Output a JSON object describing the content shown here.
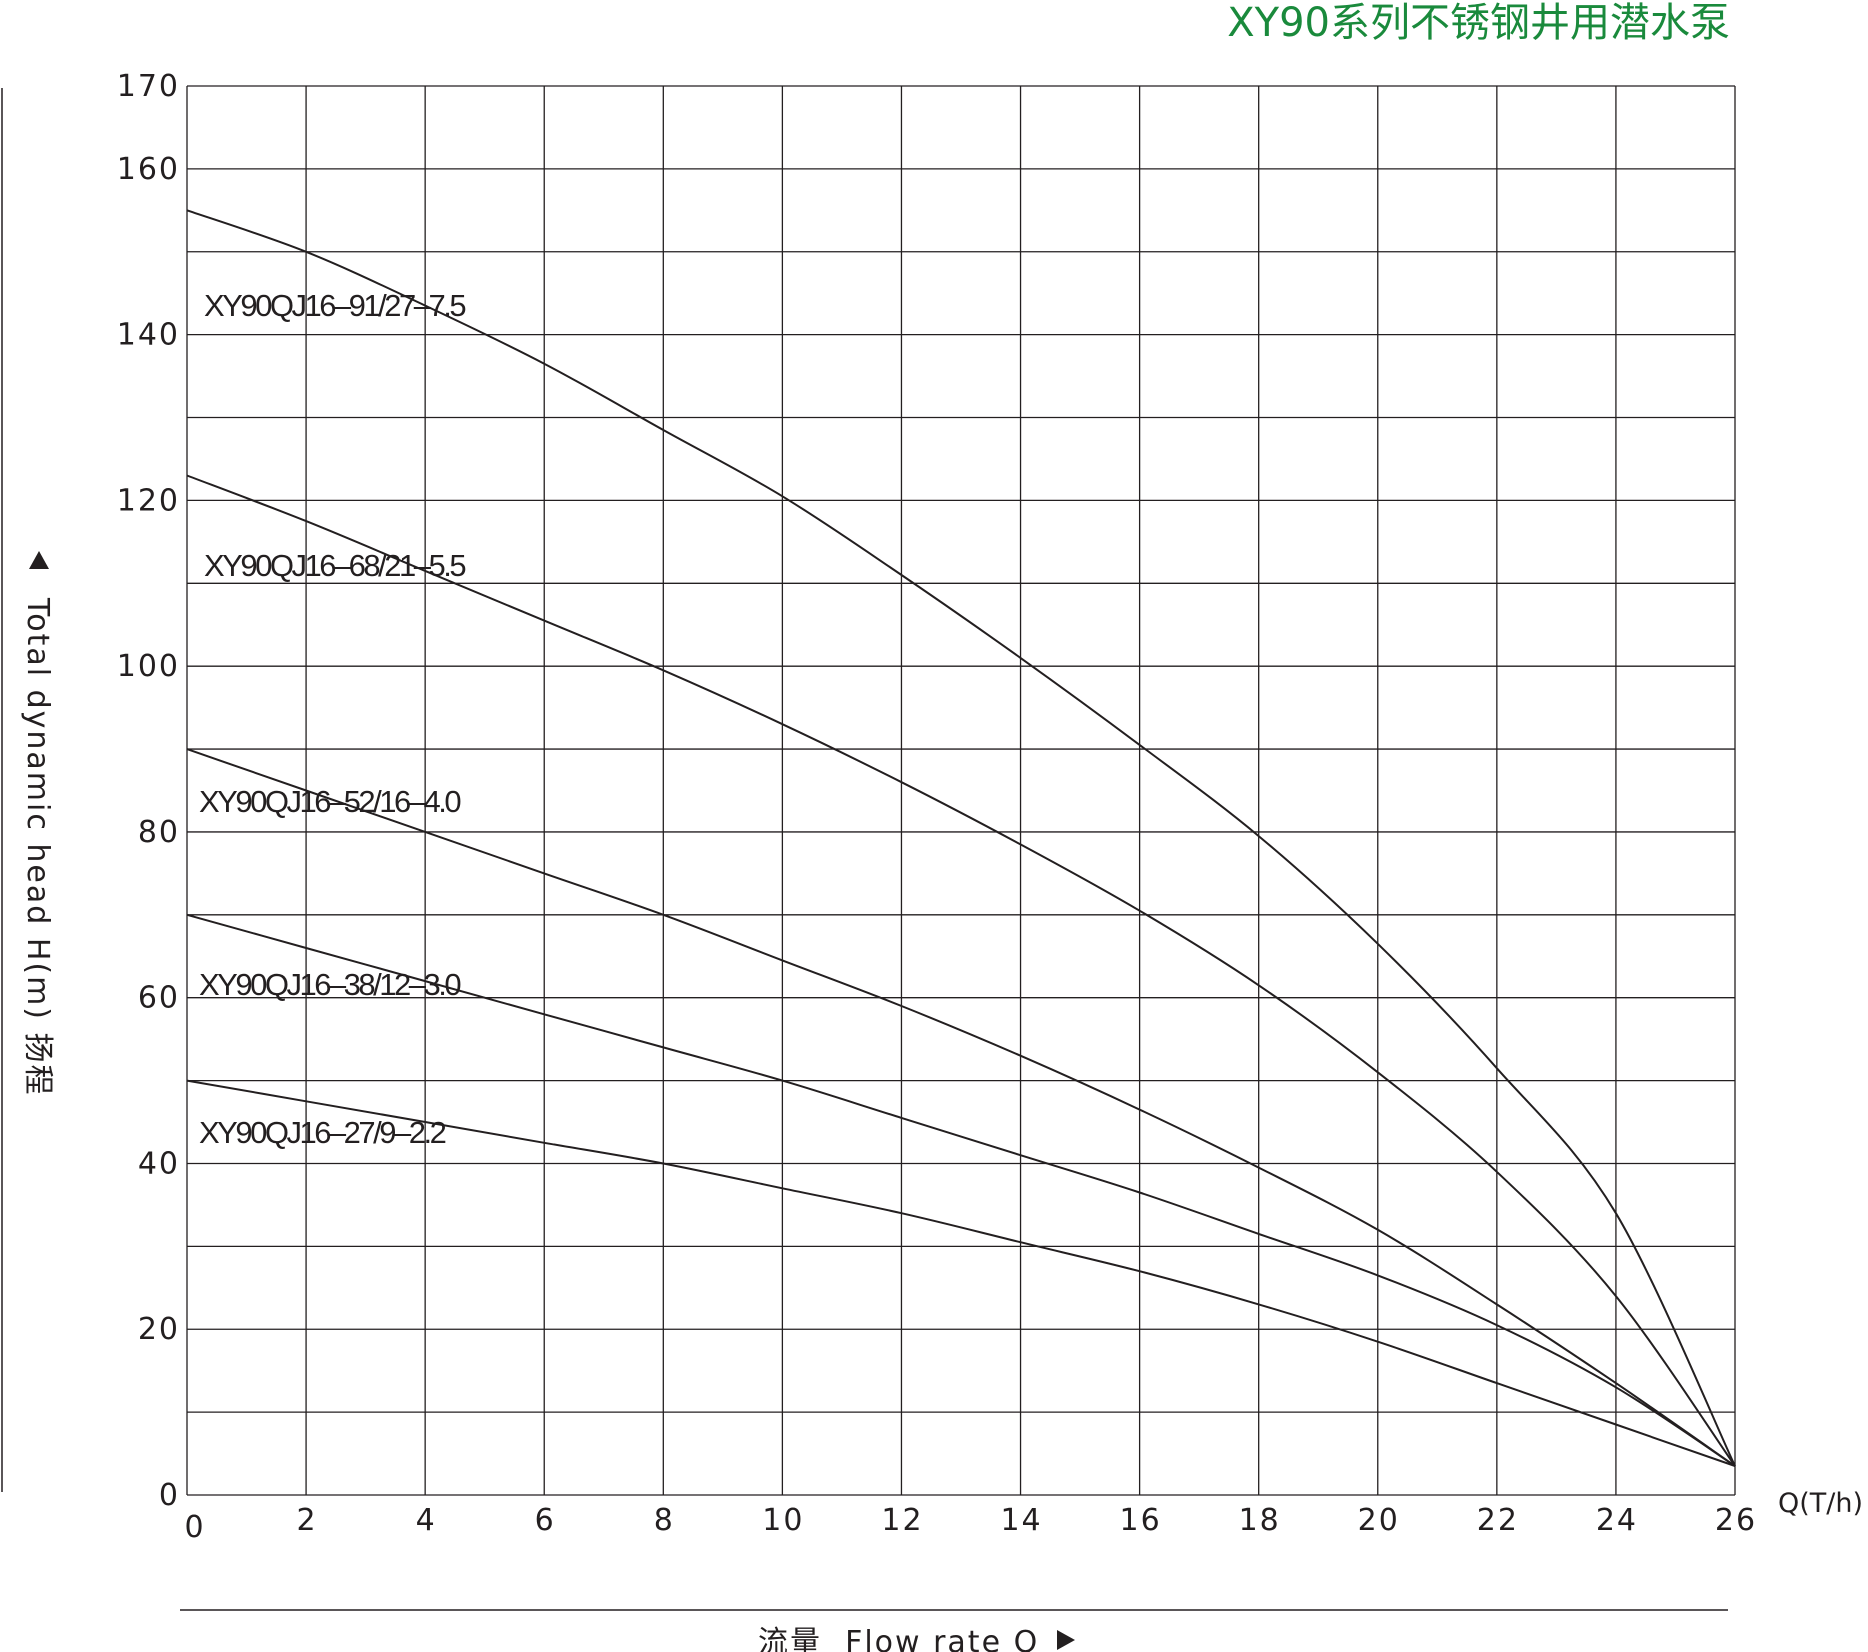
{
  "chart_data": {
    "type": "line",
    "title": "XY90系列不锈钢井用潜水泵",
    "xlabel": "流量  Flow rate Q",
    "x_unit": "Q(T/h)",
    "ylabel": "Total dynamic head H(m) 扬程",
    "xlim": [
      0,
      26
    ],
    "ylim": [
      0,
      170
    ],
    "x_ticks": [
      0,
      2,
      4,
      6,
      8,
      10,
      12,
      14,
      16,
      18,
      20,
      22,
      24,
      26
    ],
    "y_ticks": [
      0,
      20,
      40,
      60,
      80,
      100,
      120,
      140,
      160,
      170
    ],
    "grid": true,
    "x": [
      0,
      2,
      4,
      6,
      8,
      10,
      12,
      14,
      16,
      18,
      20,
      22,
      24,
      26
    ],
    "series": [
      {
        "name": "XY90QJ16–91/27–7.5",
        "values": [
          155,
          150,
          143.5,
          136.5,
          128.5,
          120.5,
          111,
          101,
          90.5,
          79.5,
          66.5,
          51.5,
          34,
          3.5
        ]
      },
      {
        "name": "XY90QJ16–68/21–5.5",
        "values": [
          123,
          117.5,
          111.5,
          105.5,
          99.5,
          93,
          86,
          78.5,
          70.5,
          61.5,
          51,
          39,
          24,
          3.5
        ]
      },
      {
        "name": "XY90QJ16–52/16–4.0",
        "values": [
          90,
          85,
          80,
          75,
          70,
          64.5,
          59,
          53,
          46.5,
          39.5,
          32,
          23,
          13.5,
          3.5
        ]
      },
      {
        "name": "XY90QJ16–38/12–3.0",
        "values": [
          70,
          66,
          62,
          58,
          54,
          50,
          45.5,
          41,
          36.5,
          31.5,
          26.5,
          20.5,
          13,
          3.5
        ]
      },
      {
        "name": "XY90QJ16–27/9–2.2",
        "values": [
          50,
          47.5,
          45,
          42.5,
          40,
          37,
          34,
          30.5,
          27,
          23,
          18.5,
          13.5,
          8.5,
          3.5
        ]
      }
    ]
  }
}
